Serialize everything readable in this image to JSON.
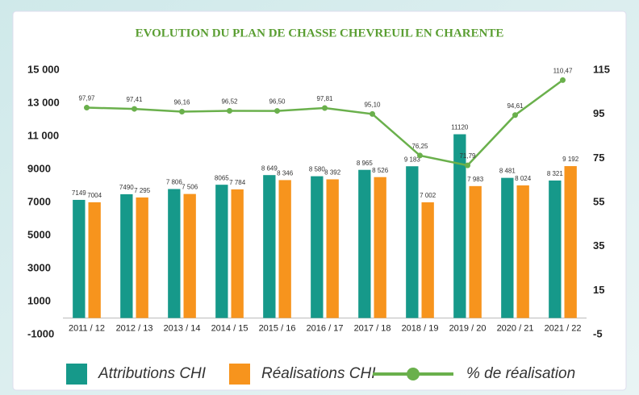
{
  "chart_data": {
    "type": "bar_line",
    "title": "EVOLUTION DU PLAN DE CHASSE CHEVREUIL EN CHARENTE",
    "categories": [
      "2011 / 12",
      "2012 / 13",
      "2013 / 14",
      "2014 / 15",
      "2015 / 16",
      "2016 / 17",
      "2017 / 18",
      "2018 / 19",
      "2019 / 20",
      "2020 / 21",
      "2021 / 22"
    ],
    "series": [
      {
        "name": "Attributions CHI",
        "color": "#16998a",
        "values": [
          7149,
          7490,
          7806,
          8065,
          8649,
          8580,
          8965,
          9183,
          11120,
          8481,
          8321
        ],
        "value_labels": [
          "7149",
          "7490",
          "7 806",
          "8065",
          "8 649",
          "8 580",
          "8 965",
          "9 183",
          "11120",
          "8 481",
          "8 321"
        ]
      },
      {
        "name": "Réalisations CHI",
        "color": "#f7941d",
        "values": [
          7004,
          7295,
          7506,
          7784,
          8346,
          8392,
          8526,
          7002,
          7983,
          8024,
          9192
        ],
        "value_labels": [
          "7004",
          "7 295",
          "7 506",
          "7 784",
          "8 346",
          "8 392",
          "8 526",
          "7 002",
          "7 983",
          "8 024",
          "9 192"
        ]
      },
      {
        "name": "% de réalisation",
        "color": "#6ab04c",
        "axis": "y2",
        "values": [
          97.97,
          97.41,
          96.16,
          96.52,
          96.5,
          97.81,
          95.1,
          76.25,
          71.79,
          94.61,
          110.47
        ],
        "value_labels": [
          "97,97",
          "97,41",
          "96,16",
          "96,52",
          "96,50",
          "97,81",
          "95,10",
          "76,25",
          "71,79",
          "94,61",
          "110,47"
        ]
      }
    ],
    "ylim": [
      -1000,
      15000
    ],
    "yticks": [
      -1000,
      1000,
      3000,
      5000,
      7000,
      9000,
      {
        "value": 11000,
        "label": "11 000"
      },
      {
        "value": 13000,
        "label": "13 000"
      },
      {
        "value": 15000,
        "label": "15 000"
      }
    ],
    "y2lim": [
      -5,
      115
    ],
    "y2ticks": [
      -5,
      15,
      35,
      55,
      75,
      95,
      115
    ],
    "grid": false
  }
}
